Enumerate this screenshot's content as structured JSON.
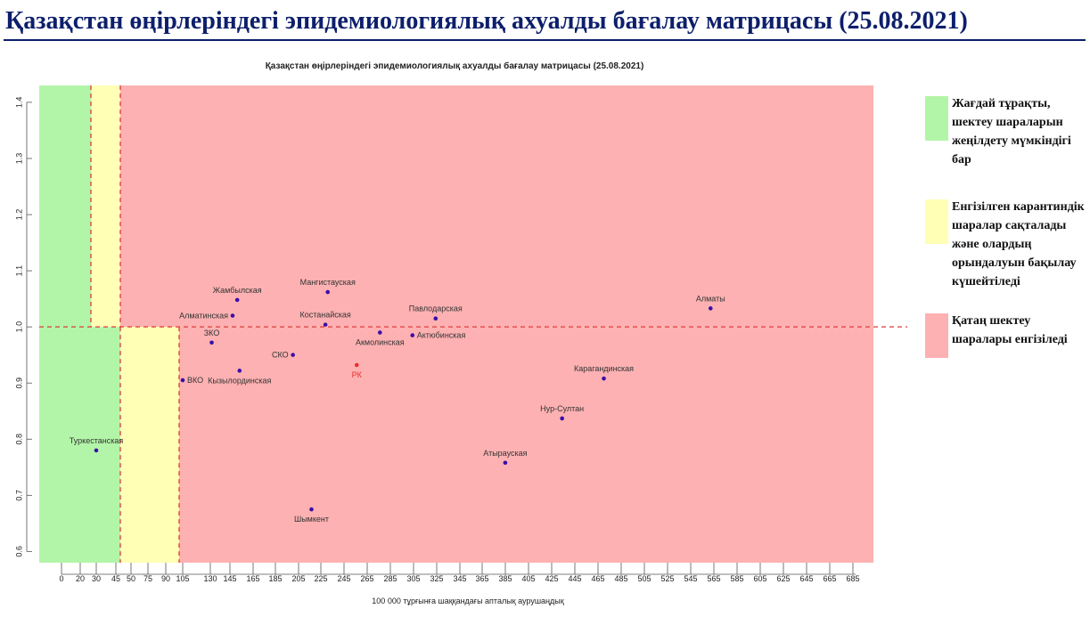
{
  "slide": {
    "title": "Қазақстан өңірлеріндегі эпидемиологиялық ахуалды бағалау матрицасы  (25.08.2021)"
  },
  "legend": [
    {
      "color": "#b3f5a8",
      "text": "Жағдай тұрақты, шектеу шараларын жеңілдету мүмкіндігі бар"
    },
    {
      "color": "#ffffb5",
      "text": "Енгізілген карантиндік шаралар сақталады және олардың орындалуын бақылау күшейтіледі"
    },
    {
      "color": "#fdb1b2",
      "text": "Қатаң шектеу шаралары енгізіледі"
    }
  ],
  "chart_data": {
    "type": "scatter",
    "title": "Қазақстан өңірлеріндегі эпидемиологиялық ахуалды бағалау матрицасы  (25.08.2021)",
    "xlabel": "100 000 тұрғынға шаққандағы апталық аурушаңдық",
    "ylabel": "",
    "x_ticks": [
      "0",
      "20",
      "30",
      "45",
      "50",
      "75",
      "90",
      "105",
      "130",
      "145",
      "165",
      "185",
      "205",
      "225",
      "245",
      "265",
      "285",
      "305",
      "325",
      "345",
      "365",
      "385",
      "405",
      "425",
      "445",
      "465",
      "485",
      "505",
      "525",
      "545",
      "565",
      "585",
      "605",
      "625",
      "645",
      "665",
      "685"
    ],
    "y_ticks": [
      0.6,
      0.7,
      0.8,
      0.9,
      1.0,
      1.1,
      1.2,
      1.3,
      1.4
    ],
    "ylim": [
      0.58,
      1.43
    ],
    "zones": [
      {
        "name": "green",
        "color": "#b3f5a8"
      },
      {
        "name": "yellow",
        "color": "#ffffb5"
      },
      {
        "name": "red",
        "color": "#fdb1b2"
      }
    ],
    "threshold_lines": {
      "color": "#e03a3a",
      "y": 1.0
    },
    "points": [
      {
        "label": "Туркестанская",
        "x": 30,
        "y": 0.78,
        "color": "#3a0ea8",
        "label_pos": "above"
      },
      {
        "label": "ВКО",
        "x": 105,
        "y": 0.905,
        "color": "#3a0ea8",
        "label_pos": "right"
      },
      {
        "label": "ЗКО",
        "x": 130,
        "y": 0.972,
        "color": "#3a0ea8",
        "label_pos": "above"
      },
      {
        "label": "Алматинская",
        "x": 148,
        "y": 1.02,
        "color": "#3a0ea8",
        "label_pos": "left"
      },
      {
        "label": "Жамбылская",
        "x": 152,
        "y": 1.048,
        "color": "#3a0ea8",
        "label_pos": "above"
      },
      {
        "label": "Кызылординская",
        "x": 154,
        "y": 0.922,
        "color": "#3a0ea8",
        "label_pos": "below"
      },
      {
        "label": "СКО",
        "x": 200,
        "y": 0.95,
        "color": "#3a0ea8",
        "label_pos": "left"
      },
      {
        "label": "Шымкент",
        "x": 216,
        "y": 0.675,
        "color": "#3a0ea8",
        "label_pos": "below"
      },
      {
        "label": "Костанайская",
        "x": 228,
        "y": 1.004,
        "color": "#3a0ea8",
        "label_pos": "above"
      },
      {
        "label": "Мангистауская",
        "x": 230,
        "y": 1.062,
        "color": "#3a0ea8",
        "label_pos": "above"
      },
      {
        "label": "РК",
        "x": 255,
        "y": 0.932,
        "color": "#e8312f",
        "label_pos": "below"
      },
      {
        "label": "Акмолинская",
        "x": 275,
        "y": 0.99,
        "color": "#3a0ea8",
        "label_pos": "below"
      },
      {
        "label": "Актюбинская",
        "x": 303,
        "y": 0.985,
        "color": "#3a0ea8",
        "label_pos": "right"
      },
      {
        "label": "Павлодарская",
        "x": 323,
        "y": 1.015,
        "color": "#3a0ea8",
        "label_pos": "above"
      },
      {
        "label": "Атырауская",
        "x": 383,
        "y": 0.758,
        "color": "#3a0ea8",
        "label_pos": "above"
      },
      {
        "label": "Нур-Султан",
        "x": 432,
        "y": 0.837,
        "color": "#3a0ea8",
        "label_pos": "above"
      },
      {
        "label": "Карагандинская",
        "x": 468,
        "y": 0.908,
        "color": "#3a0ea8",
        "label_pos": "above"
      },
      {
        "label": "Алматы",
        "x": 560,
        "y": 1.033,
        "color": "#3a0ea8",
        "label_pos": "above"
      }
    ]
  }
}
